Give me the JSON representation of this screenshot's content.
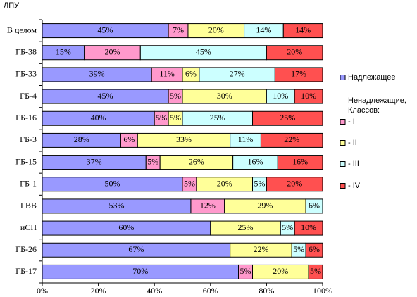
{
  "chart_data": {
    "type": "stacked-bar-horizontal",
    "title": "ЛПУ",
    "categories": [
      "В целом",
      "ГБ-38",
      "ГБ-33",
      "ГБ-4",
      "ГБ-16",
      "ГБ-3",
      "ГБ-15",
      "ГБ-1",
      "ГВВ",
      "иСП",
      "ГБ-26",
      "ГБ-17"
    ],
    "legend_title": "Ненадлежащие, Классов:",
    "series": [
      {
        "name": "Надлежащее",
        "color": "#9999ff",
        "values": [
          45,
          15,
          39,
          45,
          40,
          28,
          37,
          50,
          53,
          60,
          67,
          70
        ],
        "value_labels": [
          "45%",
          "15%",
          "39%",
          "45%",
          "40%",
          "28%",
          "37%",
          "50%",
          "53%",
          "60%",
          "67%",
          "70%"
        ]
      },
      {
        "name": "- I",
        "color": "#ff99cc",
        "values": [
          7,
          20,
          11,
          5,
          5,
          6,
          5,
          5,
          12,
          null,
          null,
          5
        ],
        "value_labels": [
          "7%",
          "20%",
          "11%",
          "5%",
          "5%",
          "6%",
          "5%",
          "5%",
          "12%",
          null,
          null,
          "5%"
        ]
      },
      {
        "name": "- II",
        "color": "#ffff99",
        "values": [
          20,
          null,
          6,
          30,
          5,
          33,
          26,
          20,
          29,
          25,
          22,
          20
        ],
        "value_labels": [
          "20%",
          null,
          "6%",
          "30%",
          "5%",
          "33%",
          "26%",
          "20%",
          "29%",
          "25%",
          "22%",
          "20%"
        ]
      },
      {
        "name": "- III",
        "color": "#ccffff",
        "values": [
          14,
          45,
          27,
          10,
          25,
          11,
          16,
          5,
          6,
          5,
          5,
          null
        ],
        "value_labels": [
          "14%",
          "45%",
          "27%",
          "10%",
          "25%",
          "11%",
          "16%",
          "5%",
          "6%",
          "5%",
          "5%",
          null
        ]
      },
      {
        "name": "- IV",
        "color": "#ff5050",
        "values": [
          14,
          20,
          17,
          10,
          25,
          22,
          16,
          20,
          null,
          10,
          6,
          5
        ],
        "value_labels": [
          "14%",
          "20%",
          "17%",
          "10%",
          "25%",
          "22%",
          "16%",
          "20%",
          null,
          "10%",
          "6%",
          "5%"
        ]
      }
    ],
    "xlim": [
      0,
      100
    ],
    "xticks": [
      {
        "value": 0,
        "label": "0%"
      },
      {
        "value": 20,
        "label": "20%"
      },
      {
        "value": 40,
        "label": "40%"
      },
      {
        "value": 60,
        "label": "60%"
      },
      {
        "value": 80,
        "label": "80%"
      },
      {
        "value": 100,
        "label": "100%"
      }
    ],
    "legend": "right"
  }
}
